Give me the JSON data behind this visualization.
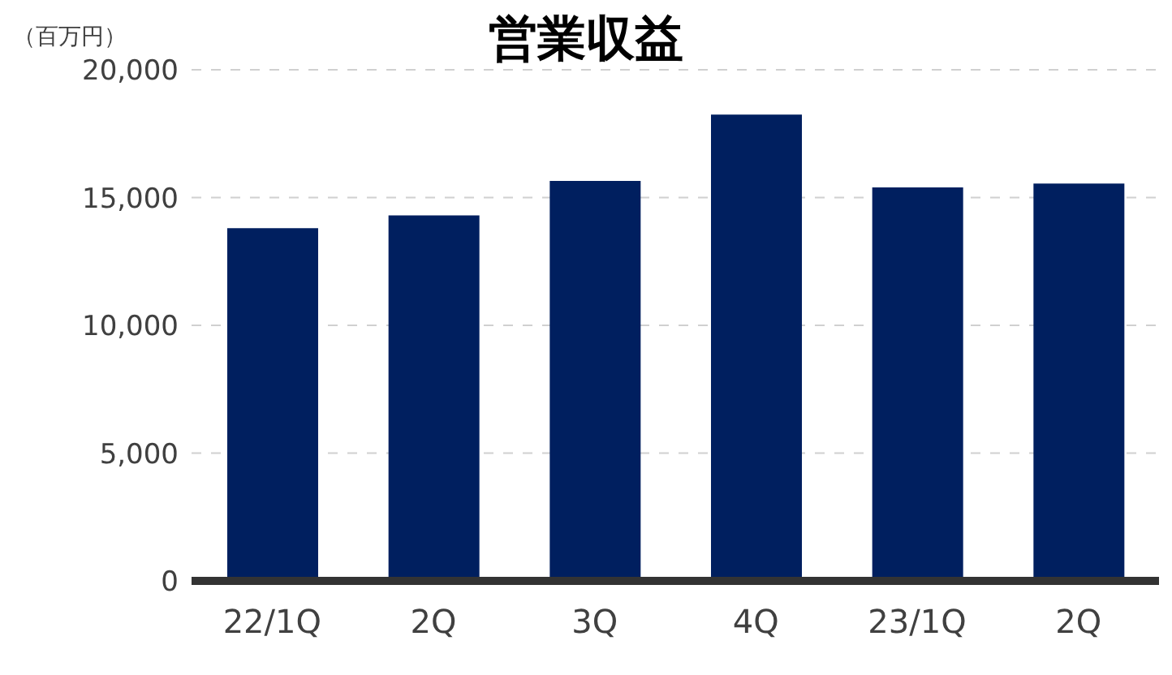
{
  "chart_data": {
    "type": "bar",
    "title": "営業収益",
    "ylabel": "（百万円）",
    "categories": [
      "22/1Q",
      "2Q",
      "3Q",
      "4Q",
      "23/1Q",
      "2Q"
    ],
    "values": [
      13800,
      14300,
      15650,
      18250,
      15400,
      15550
    ],
    "color": "#001f5f",
    "ylim": [
      0,
      20000
    ],
    "yticks": [
      0,
      {
        "value": 5000,
        "label": "5,000"
      },
      {
        "value": 10000,
        "label": "10,000"
      },
      {
        "value": 15000,
        "label": "15,000"
      },
      {
        "value": 20000,
        "label": "20,000"
      }
    ],
    "grid": "y"
  }
}
